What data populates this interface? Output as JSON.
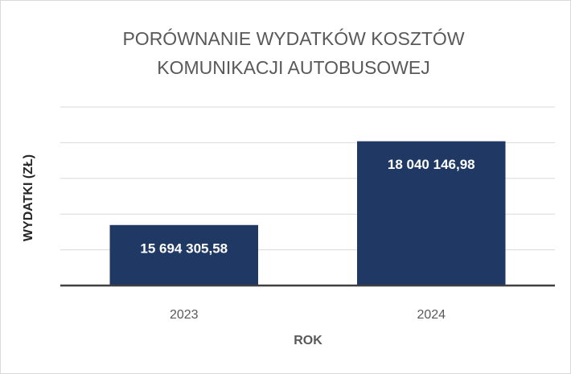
{
  "chart_data": {
    "type": "bar",
    "title": [
      "PORÓWNANIE WYDATKÓW KOSZTÓW",
      "KOMUNIKACJI AUTOBUSOWEJ"
    ],
    "x_label": "ROK",
    "y_label": "WYDATKI (ZŁ)",
    "categories": [
      "2023",
      "2024"
    ],
    "values": [
      15694305.58,
      18040146.98
    ],
    "value_labels": [
      "15 694 305,58",
      "18 040 146,98"
    ],
    "color": "#1f3864",
    "ylim": [
      14000000,
      19000000
    ],
    "yticks": [
      14000000,
      15000000,
      16000000,
      17000000,
      18000000,
      19000000
    ],
    "grid": true
  }
}
